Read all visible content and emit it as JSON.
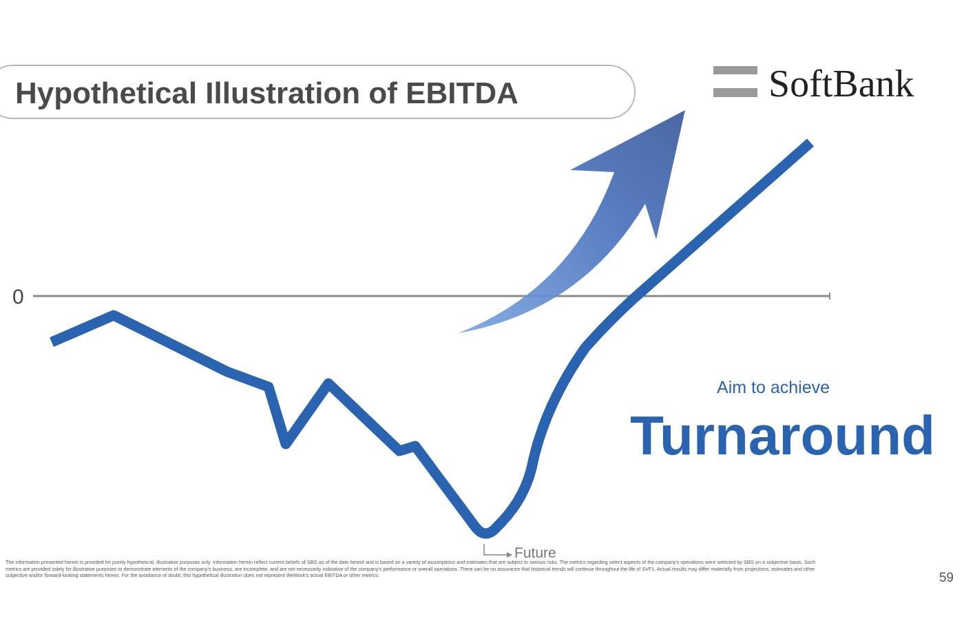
{
  "header": {
    "title": "Hypothetical Illustration of EBITDA",
    "logo": "SoftBank"
  },
  "chart": {
    "zero_label": "0",
    "future_label": "Future"
  },
  "callout": {
    "lead": "Aim to achieve",
    "headline": "Turnaround"
  },
  "footer": {
    "disclaimer": "The information presented herein is provided for purely hypothetical, illustrative purposes only. Information herein reflect current beliefs of SBG as of the date hereof and is based on a variety of assumptions and estimates that are subject to various risks. The metrics regarding select aspects of the company's operations were selected by SBG on a subjective basis. Such metrics are provided solely for illustrative purposes to demonstrate elements of the company's business, are incomplete, and are not necessarily indicative of the company's performance or overall operations. There can be no assurance that historical trends will continue throughout the life of SVF1. Actual results may differ materially from projections, estimates and other subjective and/or forward-looking statements herein. For the avoidance of doubt, this hypothetical illustration does not represent WeWork's actual EBITDA or other metrics.",
    "page_number": "59"
  }
}
